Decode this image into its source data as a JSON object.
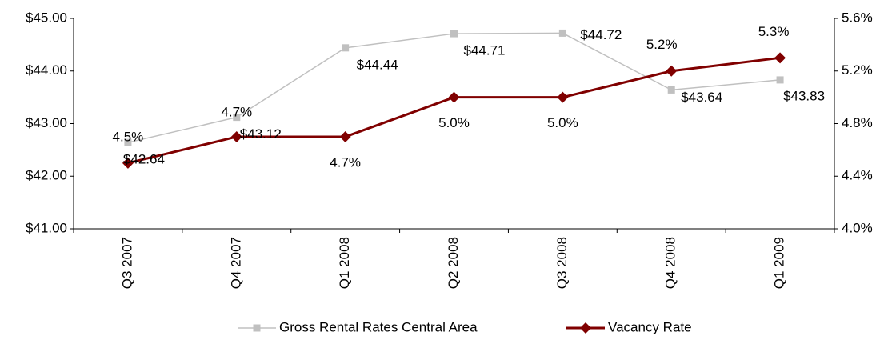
{
  "chart_data": {
    "type": "line",
    "categories": [
      "Q3 2007",
      "Q4 2007",
      "Q1 2008",
      "Q2 2008",
      "Q3 2008",
      "Q4 2008",
      "Q1 2009"
    ],
    "series": [
      {
        "name": "Gross Rental Rates Central Area",
        "color": "#c0c0c0",
        "marker": "square",
        "values": [
          42.64,
          43.12,
          44.44,
          44.71,
          44.72,
          43.64,
          43.83
        ],
        "value_labels": [
          "$42.64",
          "$43.12",
          "$44.44",
          "$44.71",
          "$44.72",
          "$43.64",
          "$43.83"
        ]
      },
      {
        "name": "Vacancy Rate",
        "color": "#800000",
        "marker": "diamond",
        "axis": "y2",
        "values": [
          4.5,
          4.7,
          4.7,
          5.0,
          5.0,
          5.2,
          5.3
        ],
        "value_labels": [
          "4.5%",
          "4.7%",
          "4.7%",
          "5.0%",
          "5.0%",
          "5.2%",
          "5.3%"
        ]
      }
    ],
    "ylim": [
      41,
      45
    ],
    "yticks": [
      {
        "value": 41,
        "label": "$41.00"
      },
      {
        "value": 42,
        "label": "$42.00"
      },
      {
        "value": 43,
        "label": "$43.00"
      },
      {
        "value": 44,
        "label": "$44.00"
      },
      {
        "value": 45,
        "label": "$45.00"
      }
    ],
    "y2lim": [
      4.0,
      5.6
    ],
    "y2ticks": [
      {
        "value": 4.0,
        "label": "4.0%"
      },
      {
        "value": 4.4,
        "label": "4.4%"
      },
      {
        "value": 4.8,
        "label": "4.8%"
      },
      {
        "value": 5.2,
        "label": "5.2%"
      },
      {
        "value": 5.6,
        "label": "5.6%"
      }
    ],
    "legend": "bottom"
  }
}
